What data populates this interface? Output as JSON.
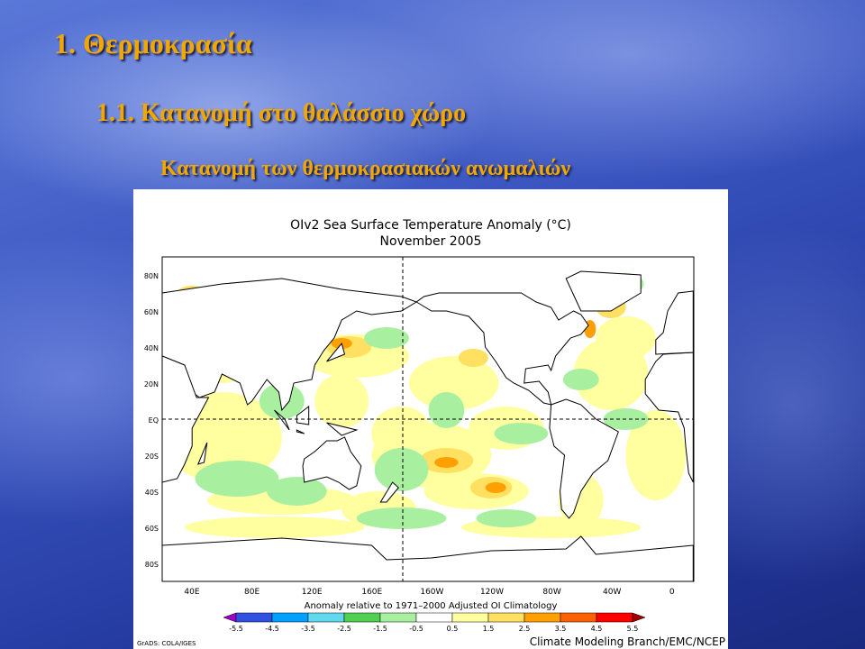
{
  "slide": {
    "title": "1. Θερμοκρασία",
    "subtitle": "1.1. Κατανομή στο θαλάσσιο χώρο",
    "caption": "Κατανομή των θερμοκρασιακών ανωμαλιών"
  },
  "figure": {
    "title": "OIv2 Sea Surface Temperature Anomaly (°C)",
    "date": "November 2005",
    "lat_labels": [
      "80N",
      "60N",
      "40N",
      "20N",
      "EQ",
      "20S",
      "40S",
      "60S",
      "80S"
    ],
    "lon_labels": [
      "40E",
      "80E",
      "120E",
      "160E",
      "160W",
      "120W",
      "80W",
      "40W",
      "0"
    ],
    "colorbar_caption": "Anomaly relative to 1971–2000 Adjusted OI Climatology",
    "colorbar_levels": [
      -5.5,
      -4.5,
      -3.5,
      -2.5,
      -1.5,
      -0.5,
      0.5,
      1.5,
      2.5,
      3.5,
      4.5,
      5.5
    ],
    "colorbar_colors": [
      "#a000c8",
      "#3050e0",
      "#00a0ff",
      "#60d8f0",
      "#50d050",
      "#a8f0a0",
      "#ffffff",
      "#ffffa0",
      "#ffe060",
      "#ffa000",
      "#ff6000",
      "#ff0000",
      "#a00000"
    ],
    "credit_left": "GrADS: COLA/IGES",
    "credit_right": "Climate Modeling Branch/EMC/NCEP"
  }
}
